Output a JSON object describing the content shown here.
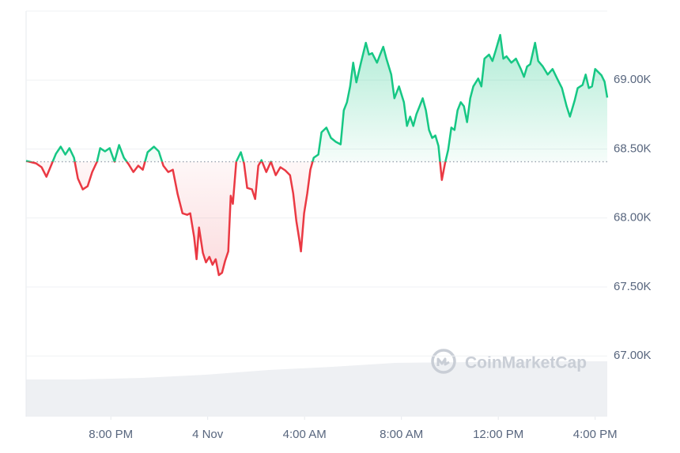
{
  "chart_data": {
    "type": "line",
    "watermark": "CoinMarketCap",
    "x": [
      -7.5,
      -7.09,
      -6.86,
      -6.66,
      -6.47,
      -6.27,
      -6.07,
      -5.88,
      -5.71,
      -5.52,
      -5.36,
      -5.16,
      -4.96,
      -4.77,
      -4.57,
      -4.44,
      -4.24,
      -4.05,
      -3.85,
      -3.66,
      -3.46,
      -3.27,
      -3.07,
      -2.87,
      -2.68,
      -2.48,
      -2.22,
      -2.02,
      -1.83,
      -1.63,
      -1.44,
      -1.24,
      -1.04,
      -0.85,
      -0.72,
      -0.56,
      -0.46,
      -0.36,
      -0.2,
      -0.07,
      0.07,
      0.2,
      0.33,
      0.46,
      0.59,
      0.72,
      0.85,
      0.95,
      1.04,
      1.18,
      1.37,
      1.5,
      1.63,
      1.83,
      1.96,
      2.09,
      2.22,
      2.42,
      2.61,
      2.81,
      3.0,
      3.2,
      3.4,
      3.53,
      3.66,
      3.79,
      3.85,
      3.98,
      4.11,
      4.24,
      4.38,
      4.57,
      4.7,
      4.9,
      5.09,
      5.29,
      5.49,
      5.62,
      5.75,
      5.88,
      6.01,
      6.14,
      6.33,
      6.53,
      6.66,
      6.79,
      6.99,
      7.12,
      7.25,
      7.38,
      7.58,
      7.71,
      7.9,
      8.1,
      8.23,
      8.36,
      8.49,
      8.62,
      8.75,
      8.88,
      9.01,
      9.14,
      9.27,
      9.4,
      9.53,
      9.67,
      9.8,
      9.93,
      10.06,
      10.19,
      10.32,
      10.45,
      10.58,
      10.71,
      10.84,
      10.97,
      11.17,
      11.3,
      11.43,
      11.62,
      11.76,
      11.89,
      12.08,
      12.21,
      12.34,
      12.54,
      12.73,
      12.93,
      13.06,
      13.19,
      13.32,
      13.52,
      13.65,
      13.84,
      14.04,
      14.24,
      14.43,
      14.63,
      14.82,
      14.96,
      15.15,
      15.28,
      15.48,
      15.61,
      15.74,
      15.87,
      16.0,
      16.13,
      16.26,
      16.39,
      16.5
    ],
    "values": [
      68.414,
      68.396,
      68.368,
      68.299,
      68.379,
      68.465,
      68.517,
      68.46,
      68.506,
      68.437,
      68.287,
      68.207,
      68.23,
      68.333,
      68.408,
      68.506,
      68.483,
      68.506,
      68.408,
      68.529,
      68.437,
      68.391,
      68.333,
      68.379,
      68.35,
      68.477,
      68.517,
      68.483,
      68.379,
      68.333,
      68.35,
      68.172,
      68.034,
      68.023,
      68.034,
      67.862,
      67.701,
      67.931,
      67.747,
      67.678,
      67.718,
      67.661,
      67.701,
      67.586,
      67.603,
      67.689,
      67.758,
      68.161,
      68.103,
      68.408,
      68.477,
      68.396,
      68.218,
      68.207,
      68.138,
      68.379,
      68.419,
      68.333,
      68.408,
      68.31,
      68.368,
      68.345,
      68.31,
      68.178,
      67.977,
      67.833,
      67.758,
      68.034,
      68.178,
      68.35,
      68.437,
      68.46,
      68.621,
      68.655,
      68.58,
      68.552,
      68.534,
      68.781,
      68.839,
      68.954,
      69.126,
      68.983,
      69.126,
      69.27,
      69.184,
      69.195,
      69.126,
      69.184,
      69.241,
      69.155,
      69.04,
      68.868,
      68.954,
      68.839,
      68.667,
      68.735,
      68.667,
      68.753,
      68.81,
      68.868,
      68.781,
      68.638,
      68.58,
      68.598,
      68.523,
      68.276,
      68.396,
      68.494,
      68.655,
      68.638,
      68.781,
      68.839,
      68.81,
      68.695,
      68.868,
      68.954,
      69.011,
      68.954,
      69.155,
      69.184,
      69.138,
      69.212,
      69.327,
      69.155,
      69.172,
      69.126,
      69.155,
      69.08,
      69.023,
      69.098,
      69.115,
      69.27,
      69.138,
      69.098,
      69.04,
      69.08,
      69.011,
      68.942,
      68.81,
      68.735,
      68.85,
      68.942,
      68.965,
      69.04,
      68.942,
      68.954,
      69.08,
      69.057,
      69.034,
      68.988,
      68.873
    ],
    "baseline": 68.408,
    "colors": {
      "above": "#16c784",
      "below": "#ea3943"
    },
    "xlim": [
      -7.5,
      16.5
    ],
    "xticks": [
      {
        "value": -4,
        "label": "8:00 PM"
      },
      {
        "value": 0,
        "label": "4 Nov"
      },
      {
        "value": 4,
        "label": "4:00 AM"
      },
      {
        "value": 8,
        "label": "8:00 AM"
      },
      {
        "value": 12,
        "label": "12:00 PM"
      },
      {
        "value": 16,
        "label": "4:00 PM"
      }
    ],
    "ylim": [
      66.56,
      69.5
    ],
    "yticks": [
      {
        "value": 67,
        "label": "67.00K"
      },
      {
        "value": 67.5,
        "label": "67.50K"
      },
      {
        "value": 68,
        "label": "68.00K"
      },
      {
        "value": 68.5,
        "label": "68.50K"
      },
      {
        "value": 69,
        "label": "69.00K"
      }
    ],
    "grid": true
  }
}
